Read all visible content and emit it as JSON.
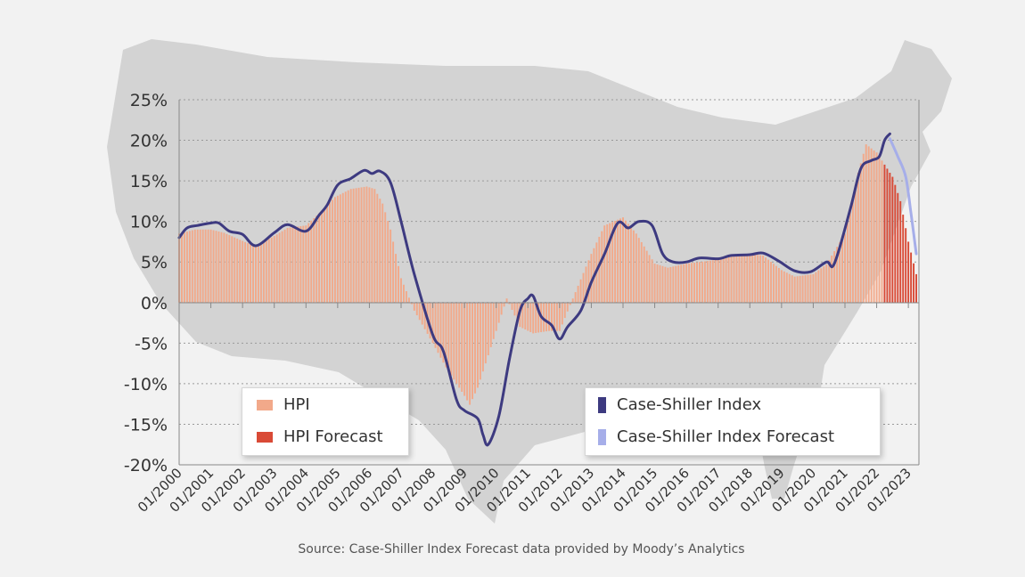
{
  "chart_data": {
    "type": "bar",
    "y_ticks": [
      "25%",
      "20%",
      "15%",
      "10%",
      "5%",
      "0%",
      "-5%",
      "-10%",
      "-15%",
      "-20%"
    ],
    "ylim": [
      -20,
      25
    ],
    "x_ticks": [
      "01/2000",
      "01/2001",
      "01/2002",
      "01/2003",
      "01/2004",
      "01/2005",
      "01/2006",
      "01/2007",
      "01/2008",
      "01/2009",
      "01/2010",
      "01/2011",
      "01/2012",
      "01/2013",
      "01/2014",
      "01/2015",
      "01/2016",
      "01/2017",
      "01/2018",
      "01/2019",
      "01/2020",
      "01/2021",
      "01/2022",
      "01/2023"
    ],
    "grid": "horizontal dotted",
    "colors": {
      "hpi": "#f2a98a",
      "hpi_forecast": "#d94a36",
      "case_shiller": "#3d3a80",
      "case_shiller_forecast": "#a6aee9"
    },
    "series": [
      {
        "name": "HPI",
        "kind": "bar",
        "points": [
          [
            "2000-01",
            8.5
          ],
          [
            "2000-07",
            9.0
          ],
          [
            "2001-01",
            9.0
          ],
          [
            "2001-06",
            8.6
          ],
          [
            "2002-01",
            7.6
          ],
          [
            "2002-06",
            6.9
          ],
          [
            "2003-01",
            8.2
          ],
          [
            "2003-06",
            9.2
          ],
          [
            "2004-01",
            9.5
          ],
          [
            "2004-06",
            11.0
          ],
          [
            "2004-12",
            13.0
          ],
          [
            "2005-06",
            14.0
          ],
          [
            "2005-12",
            14.3
          ],
          [
            "2006-03",
            14.0
          ],
          [
            "2006-06",
            12.2
          ],
          [
            "2006-09",
            9.0
          ],
          [
            "2007-01",
            3.0
          ],
          [
            "2007-06",
            -1.0
          ],
          [
            "2008-01",
            -5.0
          ],
          [
            "2008-06",
            -8.0
          ],
          [
            "2009-01",
            -11.5
          ],
          [
            "2009-03",
            -12.6
          ],
          [
            "2009-06",
            -10.5
          ],
          [
            "2010-01",
            -3.5
          ],
          [
            "2010-05",
            0.5
          ],
          [
            "2010-10",
            -3.0
          ],
          [
            "2011-03",
            -3.8
          ],
          [
            "2011-09",
            -3.5
          ],
          [
            "2012-01",
            -3.5
          ],
          [
            "2012-06",
            0.5
          ],
          [
            "2013-01",
            6.0
          ],
          [
            "2013-06",
            9.5
          ],
          [
            "2014-01",
            10.5
          ],
          [
            "2014-06",
            8.5
          ],
          [
            "2015-01",
            4.8
          ],
          [
            "2015-06",
            4.3
          ],
          [
            "2016-01",
            4.8
          ],
          [
            "2016-06",
            5.0
          ],
          [
            "2017-01",
            5.3
          ],
          [
            "2017-06",
            5.7
          ],
          [
            "2018-01",
            6.0
          ],
          [
            "2018-06",
            5.8
          ],
          [
            "2019-01",
            4.0
          ],
          [
            "2019-06",
            3.2
          ],
          [
            "2020-01",
            3.5
          ],
          [
            "2020-06",
            4.7
          ],
          [
            "2021-01",
            8.5
          ],
          [
            "2021-06",
            16.0
          ],
          [
            "2021-09",
            19.5
          ],
          [
            "2022-01",
            18.5
          ],
          [
            "2022-03",
            17.5
          ]
        ]
      },
      {
        "name": "HPI Forecast",
        "kind": "bar",
        "points": [
          [
            "2022-04",
            17.0
          ],
          [
            "2022-07",
            15.5
          ],
          [
            "2022-10",
            12.5
          ],
          [
            "2023-01",
            7.5
          ],
          [
            "2023-04",
            3.5
          ]
        ]
      },
      {
        "name": "Case-Shiller Index",
        "kind": "line",
        "points": [
          [
            "2000-01",
            8.0
          ],
          [
            "2000-04",
            9.2
          ],
          [
            "2000-08",
            9.5
          ],
          [
            "2001-01",
            9.8
          ],
          [
            "2001-04",
            9.8
          ],
          [
            "2001-08",
            8.8
          ],
          [
            "2002-01",
            8.4
          ],
          [
            "2002-06",
            7.0
          ],
          [
            "2003-01",
            8.6
          ],
          [
            "2003-06",
            9.6
          ],
          [
            "2004-01",
            8.8
          ],
          [
            "2004-06",
            10.8
          ],
          [
            "2004-09",
            12.0
          ],
          [
            "2005-01",
            14.5
          ],
          [
            "2005-06",
            15.3
          ],
          [
            "2005-11",
            16.3
          ],
          [
            "2006-02",
            15.9
          ],
          [
            "2006-05",
            16.2
          ],
          [
            "2006-09",
            14.8
          ],
          [
            "2007-01",
            10.0
          ],
          [
            "2007-06",
            3.5
          ],
          [
            "2008-01",
            -4.0
          ],
          [
            "2008-05",
            -6.0
          ],
          [
            "2008-10",
            -12.0
          ],
          [
            "2009-01",
            -13.3
          ],
          [
            "2009-06",
            -14.3
          ],
          [
            "2009-08",
            -16.3
          ],
          [
            "2009-10",
            -17.5
          ],
          [
            "2010-02",
            -14.0
          ],
          [
            "2010-06",
            -7.0
          ],
          [
            "2010-10",
            -1.0
          ],
          [
            "2011-01",
            0.5
          ],
          [
            "2011-03",
            0.8
          ],
          [
            "2011-06",
            -1.7
          ],
          [
            "2011-10",
            -2.8
          ],
          [
            "2012-01",
            -4.5
          ],
          [
            "2012-04",
            -3.0
          ],
          [
            "2012-09",
            -1.0
          ],
          [
            "2013-01",
            2.5
          ],
          [
            "2013-06",
            6.0
          ],
          [
            "2013-11",
            9.8
          ],
          [
            "2014-03",
            9.2
          ],
          [
            "2014-07",
            10.0
          ],
          [
            "2014-12",
            9.5
          ],
          [
            "2015-04",
            6.0
          ],
          [
            "2015-08",
            5.0
          ],
          [
            "2016-01",
            5.0
          ],
          [
            "2016-06",
            5.5
          ],
          [
            "2017-01",
            5.4
          ],
          [
            "2017-06",
            5.8
          ],
          [
            "2018-01",
            5.9
          ],
          [
            "2018-06",
            6.1
          ],
          [
            "2018-12",
            5.1
          ],
          [
            "2019-06",
            3.9
          ],
          [
            "2019-12",
            3.8
          ],
          [
            "2020-06",
            5.0
          ],
          [
            "2020-09",
            4.8
          ],
          [
            "2021-03",
            11.5
          ],
          [
            "2021-07",
            16.5
          ],
          [
            "2021-11",
            17.5
          ],
          [
            "2022-02",
            18.0
          ],
          [
            "2022-04",
            20.0
          ],
          [
            "2022-06",
            20.8
          ]
        ]
      },
      {
        "name": "Case-Shiller Index Forecast",
        "kind": "line",
        "points": [
          [
            "2022-06",
            20.2
          ],
          [
            "2022-09",
            18.0
          ],
          [
            "2022-12",
            15.5
          ],
          [
            "2023-02",
            11.0
          ],
          [
            "2023-04",
            6.0
          ]
        ]
      }
    ]
  },
  "legend_left": {
    "items": [
      {
        "label": "HPI"
      },
      {
        "label": "HPI Forecast"
      }
    ]
  },
  "legend_right": {
    "items": [
      {
        "label": "Case-Shiller Index"
      },
      {
        "label": "Case-Shiller Index Forecast"
      }
    ]
  },
  "source_note": "Source: Case-Shiller Index Forecast data provided by Moody’s Analytics"
}
